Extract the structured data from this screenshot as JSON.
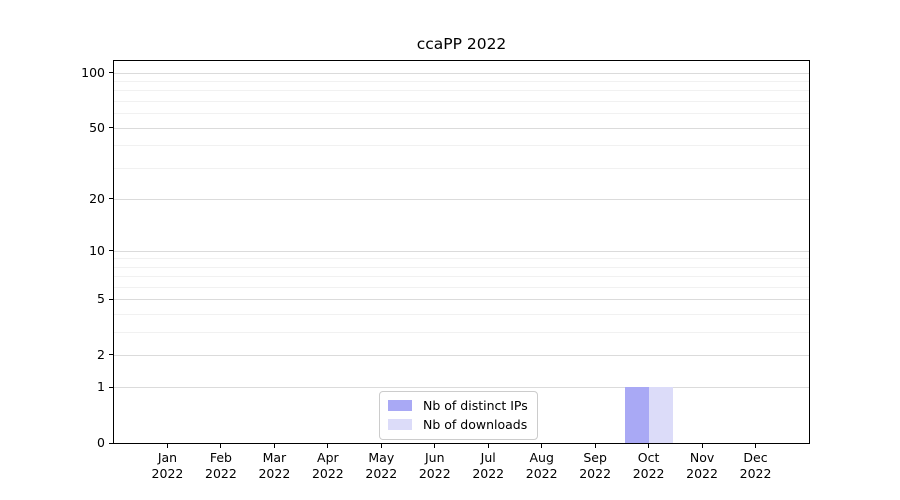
{
  "title": "ccaPP 2022",
  "chart_data": {
    "type": "bar",
    "title": "ccaPP 2022",
    "categories": [
      "Jan",
      "Feb",
      "Mar",
      "Apr",
      "May",
      "Jun",
      "Jul",
      "Aug",
      "Sep",
      "Oct",
      "Nov",
      "Dec"
    ],
    "year": "2022",
    "series": [
      {
        "name": "Nb of distinct IPs",
        "color": "#a9a9f5",
        "values": [
          0,
          0,
          0,
          0,
          0,
          0,
          0,
          0,
          0,
          1,
          0,
          0
        ]
      },
      {
        "name": "Nb of downloads",
        "color": "#dcdcf9",
        "values": [
          0,
          0,
          0,
          0,
          0,
          0,
          0,
          0,
          0,
          1,
          0,
          0
        ]
      }
    ],
    "y_axis": {
      "scale": "log1p",
      "ticks": [
        0,
        1,
        2,
        5,
        10,
        20,
        50,
        100
      ],
      "minor_gridlines": [
        3,
        4,
        6,
        7,
        8,
        9,
        30,
        40,
        60,
        70,
        80,
        90
      ],
      "max": 116
    },
    "x_axis": {
      "slots": 13
    },
    "legend": {
      "position": "bottom-center",
      "entries": [
        "Nb of distinct IPs",
        "Nb of downloads"
      ]
    },
    "grid": "on"
  },
  "colors": {
    "background": "#ffffff",
    "axis": "#000000",
    "text": "#000000",
    "gridline_major": "#dbdbdb",
    "gridline_minor": "#f1f1f1",
    "legend_border": "#cccccc",
    "bar_distinct_ips": "#a9a9f5",
    "bar_downloads": "#dcdcf9"
  }
}
